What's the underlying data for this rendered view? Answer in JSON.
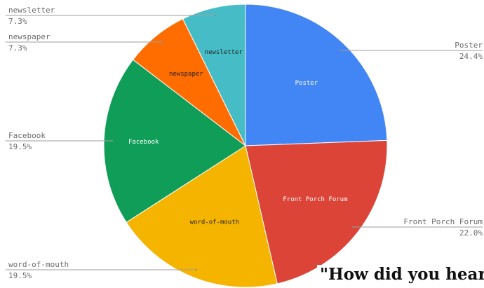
{
  "chart_data": {
    "type": "pie",
    "title": "",
    "series": [
      {
        "label": "Poster",
        "value": 24.4,
        "pct_text": "24.4%",
        "color": "#4285f4",
        "label_dark": false
      },
      {
        "label": "Front Porch Forum",
        "value": 22.0,
        "pct_text": "22.0%",
        "color": "#db4437",
        "label_dark": false
      },
      {
        "label": "word-of-mouth",
        "value": 19.5,
        "pct_text": "19.5%",
        "color": "#f4b400",
        "label_dark": true
      },
      {
        "label": "Facebook",
        "value": 19.5,
        "pct_text": "19.5%",
        "color": "#0f9d58",
        "label_dark": false
      },
      {
        "label": "newspaper",
        "value": 7.3,
        "pct_text": "7.3%",
        "color": "#ff6d01",
        "label_dark": true
      },
      {
        "label": "newsletter",
        "value": 7.3,
        "pct_text": "7.3%",
        "color": "#46bdc6",
        "label_dark": true
      }
    ],
    "start_angle_deg": 0,
    "direction": "clockwise",
    "legend": "none"
  },
  "caption": "\"How did you hear"
}
